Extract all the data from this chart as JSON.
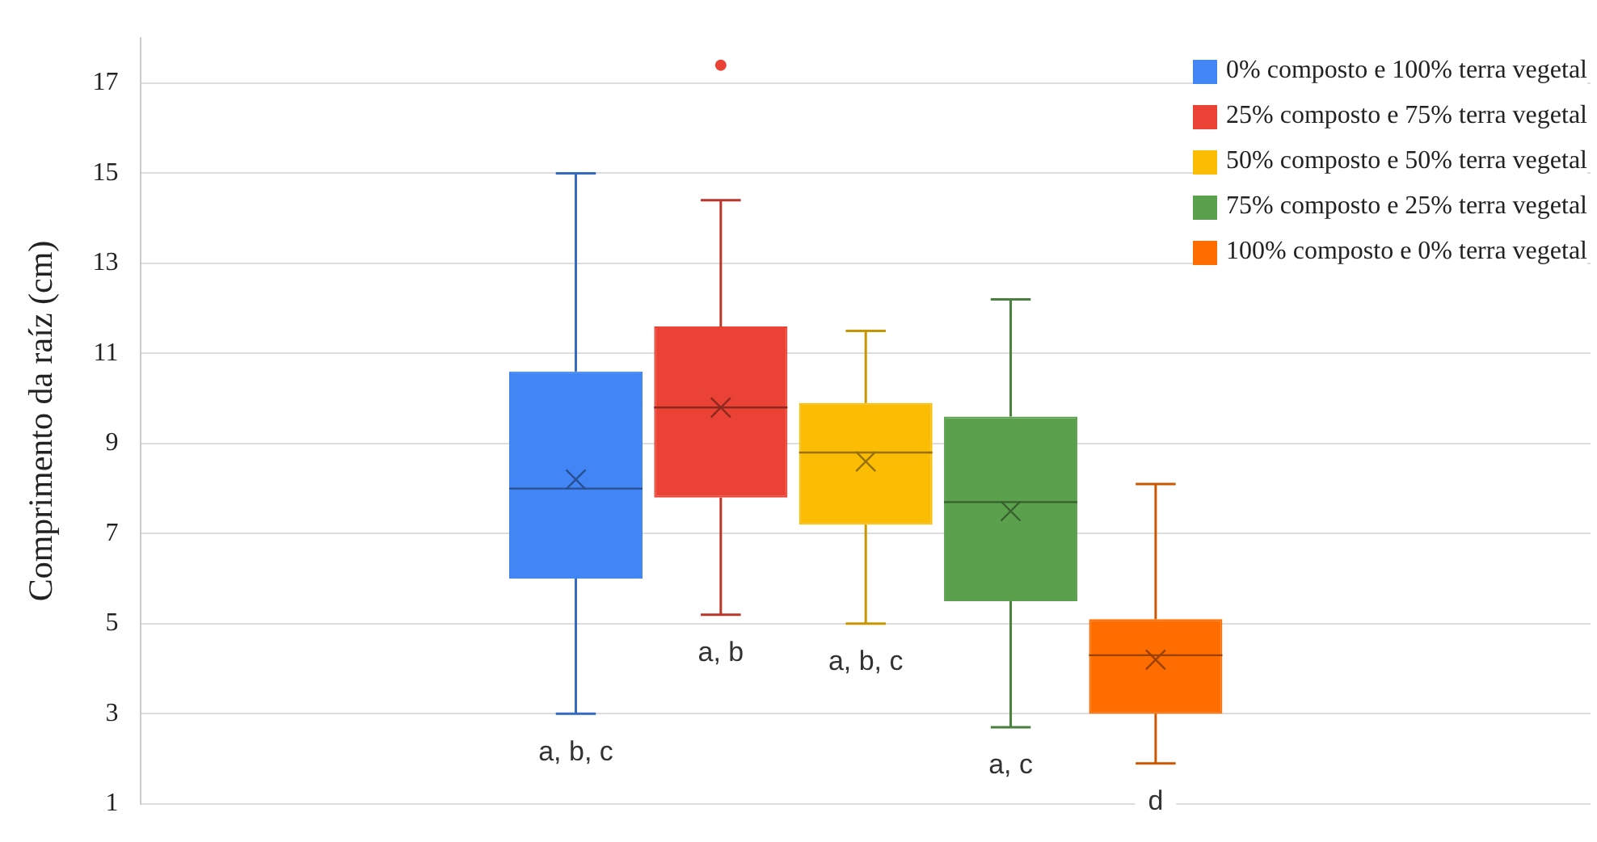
{
  "chart_data": {
    "type": "box",
    "ylabel": "Comprimento da raíz (cm)",
    "categories": [
      null
    ],
    "ylim": [
      1,
      18
    ],
    "yticks": [
      1,
      3,
      5,
      7,
      9,
      11,
      13,
      15,
      17
    ],
    "grid": "y",
    "legend": "top right",
    "tick_labels": "y",
    "series": [
      {
        "name": "0% composto e 100% terra vegetal",
        "color": "#4285f4",
        "boxes": [
          {
            "low": 3,
            "q1": 6.0,
            "median": 8.0,
            "q3": 10.6,
            "high": 15,
            "mean": 8.2
          }
        ]
      },
      {
        "name": "25% composto e 75% terra vegetal",
        "color": "#ea4335",
        "boxes": [
          {
            "low": 5.2,
            "q1": 7.8,
            "median": 9.8,
            "q3": 11.6,
            "high": 14.4,
            "mean": 9.8,
            "outliers": [
              17.4
            ]
          }
        ]
      },
      {
        "name": "50% composto e 50% terra vegetal",
        "color": "#fbbc04",
        "boxes": [
          {
            "low": 5.0,
            "q1": 7.2,
            "median": 8.8,
            "q3": 9.9,
            "high": 11.5,
            "mean": 8.6
          }
        ]
      },
      {
        "name": "75% composto e 25% terra vegetal",
        "color": "#5ba04c",
        "boxes": [
          {
            "low": 2.7,
            "q1": 5.5,
            "median": 7.7,
            "q3": 9.6,
            "high": 12.2,
            "mean": 7.5
          }
        ]
      },
      {
        "name": "100% composto e 0% terra vegetal",
        "color": "#ff6d01",
        "boxes": [
          {
            "low": 1.9,
            "q1": 3.0,
            "median": 4.3,
            "q3": 5.1,
            "high": 8.1,
            "mean": 4.2
          }
        ]
      }
    ],
    "annotations": [
      "a, b, c",
      "a, b",
      "a, b, c",
      "a, c",
      "d"
    ]
  }
}
